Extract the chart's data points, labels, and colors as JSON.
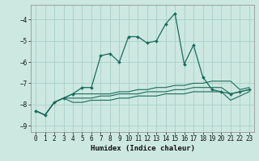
{
  "title": "",
  "xlabel": "Humidex (Indice chaleur)",
  "ylabel": "",
  "background_color": "#cce8e0",
  "grid_color": "#aacfc8",
  "line_color": "#1a6b5e",
  "xlim": [
    -0.5,
    23.5
  ],
  "ylim": [
    -9.3,
    -3.3
  ],
  "xticks": [
    0,
    1,
    2,
    3,
    4,
    5,
    6,
    7,
    8,
    9,
    10,
    11,
    12,
    13,
    14,
    15,
    16,
    17,
    18,
    19,
    20,
    21,
    22,
    23
  ],
  "yticks": [
    -9,
    -8,
    -7,
    -6,
    -5,
    -4
  ],
  "main_x": [
    0,
    1,
    2,
    3,
    4,
    5,
    6,
    7,
    8,
    9,
    10,
    11,
    12,
    13,
    14,
    15,
    16,
    17,
    18,
    19,
    20,
    21,
    22,
    23
  ],
  "main_y": [
    -8.3,
    -8.5,
    -7.9,
    -7.7,
    -7.5,
    -7.2,
    -7.2,
    -5.7,
    -5.6,
    -6.0,
    -4.8,
    -4.8,
    -5.1,
    -5.0,
    -4.2,
    -3.7,
    -6.1,
    -5.2,
    -6.7,
    -7.3,
    -7.4,
    -7.5,
    -7.4,
    -7.3
  ],
  "line2_x": [
    0,
    1,
    2,
    3,
    4,
    5,
    6,
    7,
    8,
    9,
    10,
    11,
    12,
    13,
    14,
    15,
    16,
    17,
    18,
    19,
    20,
    21,
    22,
    23
  ],
  "line2_y": [
    -8.3,
    -8.5,
    -7.9,
    -7.7,
    -7.5,
    -7.5,
    -7.5,
    -7.5,
    -7.5,
    -7.4,
    -7.4,
    -7.3,
    -7.3,
    -7.2,
    -7.2,
    -7.1,
    -7.1,
    -7.0,
    -7.0,
    -6.9,
    -6.9,
    -6.9,
    -7.3,
    -7.2
  ],
  "line3_x": [
    0,
    1,
    2,
    3,
    4,
    5,
    6,
    7,
    8,
    9,
    10,
    11,
    12,
    13,
    14,
    15,
    16,
    17,
    18,
    19,
    20,
    21,
    22,
    23
  ],
  "line3_y": [
    -8.3,
    -8.5,
    -7.9,
    -7.7,
    -7.7,
    -7.7,
    -7.7,
    -7.6,
    -7.6,
    -7.5,
    -7.5,
    -7.5,
    -7.4,
    -7.4,
    -7.4,
    -7.3,
    -7.3,
    -7.2,
    -7.2,
    -7.2,
    -7.2,
    -7.5,
    -7.4,
    -7.3
  ],
  "line4_x": [
    0,
    1,
    2,
    3,
    4,
    5,
    6,
    7,
    8,
    9,
    10,
    11,
    12,
    13,
    14,
    15,
    16,
    17,
    18,
    19,
    20,
    21,
    22,
    23
  ],
  "line4_y": [
    -8.3,
    -8.5,
    -7.9,
    -7.7,
    -7.9,
    -7.9,
    -7.8,
    -7.8,
    -7.8,
    -7.7,
    -7.7,
    -7.6,
    -7.6,
    -7.6,
    -7.5,
    -7.5,
    -7.5,
    -7.4,
    -7.4,
    -7.4,
    -7.4,
    -7.8,
    -7.6,
    -7.4
  ],
  "xlabel_fontsize": 6.5,
  "tick_fontsize": 5.5
}
